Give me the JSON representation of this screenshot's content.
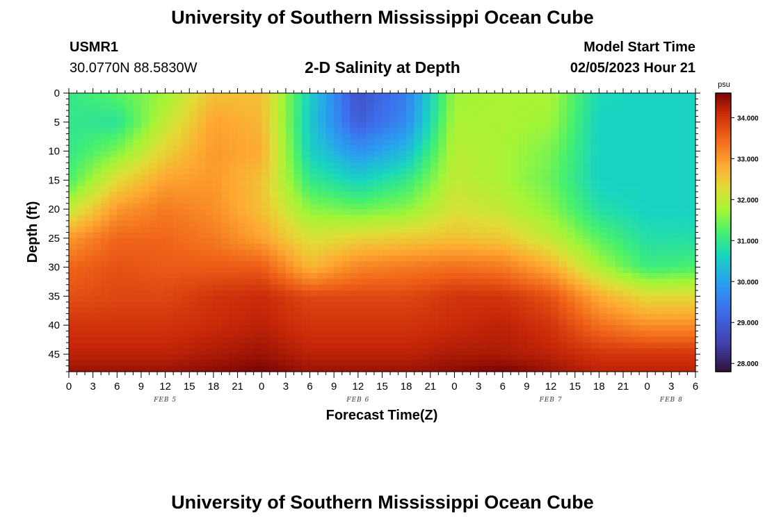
{
  "page": {
    "title": "University of Southern Mississippi Ocean Cube",
    "footer_title": "University of Southern Mississippi Ocean Cube"
  },
  "station": {
    "id": "USMR1",
    "coords": "30.0770N  88.5830W"
  },
  "model": {
    "label": "Model Start Time",
    "time": "02/05/2023 Hour 21"
  },
  "chart_data": {
    "type": "heatmap",
    "title": "2-D Salinity at Depth",
    "xlabel": "Forecast Time(Z)",
    "ylabel": "Depth (ft)",
    "x_unit": "hours since 02/05/2023 00Z",
    "x_range": [
      0,
      78
    ],
    "x_tick_hours": [
      0,
      3,
      6,
      9,
      12,
      15,
      18,
      21,
      24,
      27,
      30,
      33,
      36,
      39,
      42,
      45,
      48,
      51,
      54,
      57,
      60,
      63,
      66,
      69,
      72,
      75,
      78
    ],
    "x_tick_labels": [
      "0",
      "3",
      "6",
      "9",
      "12",
      "15",
      "18",
      "21",
      "0",
      "3",
      "6",
      "9",
      "12",
      "15",
      "18",
      "21",
      "0",
      "3",
      "6",
      "9",
      "12",
      "15",
      "18",
      "21",
      "0",
      "3",
      "6"
    ],
    "date_labels": [
      {
        "hour": 12,
        "text": "FEB 5"
      },
      {
        "hour": 36,
        "text": "FEB 6"
      },
      {
        "hour": 60,
        "text": "FEB 7"
      },
      {
        "hour": 75,
        "text": "FEB 8"
      }
    ],
    "y_range": [
      0,
      48
    ],
    "y_reversed": true,
    "y_ticks": [
      0,
      5,
      10,
      15,
      20,
      25,
      30,
      35,
      40,
      45
    ],
    "colorbar": {
      "unit": "psu",
      "min": 27.8,
      "max": 34.6,
      "ticks": [
        "28.000",
        "29.000",
        "30.000",
        "31.000",
        "32.000",
        "33.000",
        "34.000"
      ],
      "tick_values": [
        28,
        29,
        30,
        31,
        32,
        33,
        34
      ]
    },
    "hours": [
      0,
      6,
      12,
      18,
      24,
      30,
      36,
      42,
      48,
      54,
      60,
      66,
      72,
      78
    ],
    "depths": [
      0,
      5,
      10,
      15,
      20,
      25,
      30,
      35,
      40,
      45,
      48
    ],
    "salinity": [
      [
        31.0,
        31.3,
        31.7,
        32.6,
        32.6,
        30.6,
        28.8,
        29.5,
        31.7,
        31.8,
        31.8,
        30.7,
        30.6,
        30.6
      ],
      [
        31.0,
        30.9,
        32.0,
        32.9,
        32.7,
        30.5,
        29.0,
        29.7,
        31.8,
        31.8,
        31.7,
        30.6,
        30.6,
        30.6
      ],
      [
        31.0,
        31.5,
        32.4,
        33.0,
        32.8,
        30.6,
        29.8,
        30.3,
        31.9,
        31.8,
        31.5,
        30.6,
        30.6,
        30.6
      ],
      [
        31.2,
        32.3,
        32.9,
        33.0,
        32.6,
        31.0,
        30.6,
        31.0,
        32.0,
        31.8,
        31.4,
        30.6,
        30.6,
        30.6
      ],
      [
        32.0,
        33.0,
        33.3,
        33.1,
        32.6,
        31.6,
        31.4,
        31.6,
        32.2,
        32.0,
        31.6,
        30.8,
        30.6,
        30.6
      ],
      [
        33.0,
        33.5,
        33.5,
        33.3,
        32.9,
        32.2,
        32.4,
        32.5,
        32.6,
        32.5,
        32.0,
        31.3,
        30.8,
        30.8
      ],
      [
        33.5,
        33.7,
        33.6,
        33.6,
        33.6,
        32.7,
        33.2,
        33.3,
        33.4,
        33.3,
        32.8,
        31.8,
        31.1,
        31.2
      ],
      [
        33.7,
        33.8,
        33.8,
        34.0,
        34.1,
        33.8,
        33.8,
        33.8,
        34.0,
        34.0,
        33.7,
        32.8,
        32.3,
        32.3
      ],
      [
        34.0,
        34.0,
        34.0,
        34.1,
        34.2,
        34.0,
        34.0,
        34.0,
        34.1,
        34.2,
        34.0,
        33.4,
        33.1,
        33.1
      ],
      [
        34.2,
        34.2,
        34.2,
        34.3,
        34.4,
        34.2,
        34.2,
        34.2,
        34.3,
        34.3,
        34.2,
        34.0,
        34.0,
        34.0
      ],
      [
        34.4,
        34.4,
        34.4,
        34.5,
        34.6,
        34.4,
        34.4,
        34.4,
        34.5,
        34.6,
        34.4,
        34.2,
        34.2,
        34.2
      ]
    ]
  }
}
